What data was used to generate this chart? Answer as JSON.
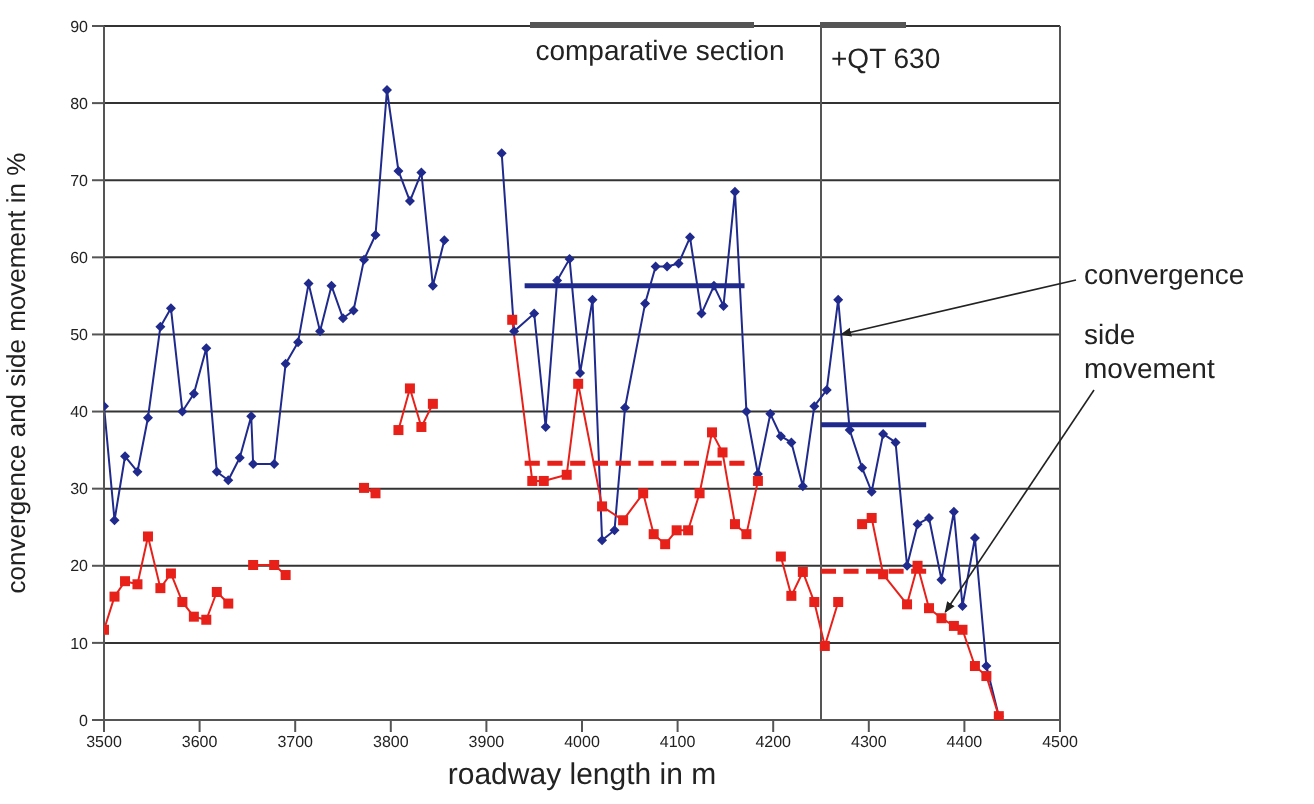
{
  "chart_data": {
    "type": "line",
    "xlabel": "roadway length in m",
    "ylabel": "convergence and side movement in %",
    "xlim": [
      3500,
      4500
    ],
    "xticks": [
      3500,
      3600,
      3700,
      3800,
      3900,
      4000,
      4100,
      4200,
      4300,
      4400,
      4500
    ],
    "ylim": [
      0,
      90
    ],
    "yticks": [
      0,
      10,
      20,
      30,
      40,
      50,
      60,
      70,
      80,
      90
    ],
    "grid": "y",
    "annotations": [
      "comparative section",
      {
        "text": "convergence",
        "x": 4271,
        "y": 50
      },
      {
        "text": "side movement",
        "x": 4380,
        "y": 14
      }
    ],
    "ref_lines": [
      {
        "axis": "x",
        "value": 4250,
        "label": "+QT 630",
        "color": "#555555"
      }
    ],
    "series": [
      {
        "color": "#1f2a8c",
        "marker": "diamond",
        "line_style": "solid",
        "x": [
          3500,
          3511,
          3522,
          3535,
          3546,
          3559,
          3570,
          3582,
          3594,
          3607,
          3618,
          3630,
          3642,
          3654,
          3656,
          3678,
          3690,
          3703,
          3714,
          3726,
          3738,
          3750,
          3761,
          3772,
          3784,
          3796,
          3808,
          3820,
          3832,
          3844,
          3856,
          3880,
          3916,
          3929,
          3950,
          3962,
          3974,
          3987,
          3998,
          4011,
          4021,
          4034,
          4045,
          4066,
          4077,
          4089,
          4101,
          4113,
          4125,
          4138,
          4148,
          4160,
          4172,
          4184,
          4197,
          4208,
          4219,
          4231,
          4243,
          4256,
          4268,
          4280,
          4293,
          4303,
          4315,
          4328,
          4340,
          4351,
          4363,
          4376,
          4389,
          4398,
          4411,
          4423,
          4436
        ],
        "values": [
          40.7,
          25.9,
          34.2,
          32.2,
          39.2,
          51,
          53.4,
          40,
          42.3,
          48.2,
          32.2,
          31.1,
          34,
          39.4,
          33.2,
          33.2,
          46.2,
          49,
          56.6,
          50.4,
          56.3,
          52.1,
          53.1,
          59.7,
          62.9,
          81.7,
          71.2,
          67.3,
          71,
          56.3,
          62.2,
          null,
          73.5,
          50.4,
          52.7,
          38,
          57,
          59.8,
          45,
          54.5,
          23.3,
          24.6,
          40.5,
          54,
          58.8,
          58.8,
          59.2,
          62.6,
          52.7,
          56.3,
          53.7,
          68.5,
          40,
          31.9,
          39.7,
          36.8,
          36,
          30.3,
          40.7,
          42.8,
          54.5,
          37.6,
          32.7,
          29.6,
          37.1,
          36,
          20,
          25.4,
          26.2,
          18.2,
          27,
          14.8,
          23.6,
          7,
          0.5
        ]
      },
      {
        "color": "#e8201a",
        "marker": "square",
        "line_style": "solid",
        "x": [
          3500,
          3511,
          3522,
          3535,
          3546,
          3559,
          3570,
          3582,
          3594,
          3607,
          3618,
          3630,
          3642,
          3656,
          3678,
          3690,
          3730,
          3772,
          3784,
          3796,
          3808,
          3820,
          3832,
          3844,
          3880,
          3927,
          3948,
          3960,
          3984,
          3996,
          4021,
          4043,
          4064,
          4075,
          4087,
          4099,
          4111,
          4123,
          4136,
          4147,
          4160,
          4172,
          4184,
          4197,
          4208,
          4219,
          4231,
          4243,
          4254,
          4268,
          4280,
          4293,
          4303,
          4315,
          4340,
          4351,
          4363,
          4376,
          4389,
          4398,
          4411,
          4423,
          4436
        ],
        "values": [
          11.7,
          16,
          18,
          17.6,
          23.8,
          17.1,
          19,
          15.3,
          13.4,
          13,
          16.6,
          15.1,
          null,
          20.1,
          20.1,
          18.8,
          null,
          30.1,
          29.4,
          null,
          37.6,
          43,
          38,
          41,
          null,
          51.9,
          31,
          31,
          31.8,
          43.6,
          27.7,
          25.9,
          29.4,
          24.1,
          22.8,
          24.6,
          24.6,
          29.4,
          37.3,
          34.7,
          25.4,
          24.1,
          31,
          null,
          21.2,
          16.1,
          19.2,
          15.3,
          9.6,
          15.3,
          null,
          25.4,
          26.2,
          18.9,
          15,
          20,
          14.5,
          13.2,
          12.2,
          11.7,
          7,
          5.7,
          0.5
        ]
      },
      {
        "color": "#1f2a8c",
        "marker": "none",
        "line_style": "solid",
        "x": [
          3940,
          4170
        ],
        "values": [
          56.3,
          56.3
        ]
      },
      {
        "color": "#e8201a",
        "marker": "none",
        "line_style": "dashed",
        "x": [
          3940,
          4170
        ],
        "values": [
          33.3,
          33.3
        ]
      },
      {
        "color": "#1f2a8c",
        "marker": "none",
        "line_style": "solid",
        "x": [
          4250,
          4360
        ],
        "values": [
          38.3,
          38.3
        ]
      },
      {
        "color": "#e8201a",
        "marker": "none",
        "line_style": "dashed",
        "x": [
          4250,
          4360
        ],
        "values": [
          19.3,
          19.3
        ]
      }
    ]
  }
}
